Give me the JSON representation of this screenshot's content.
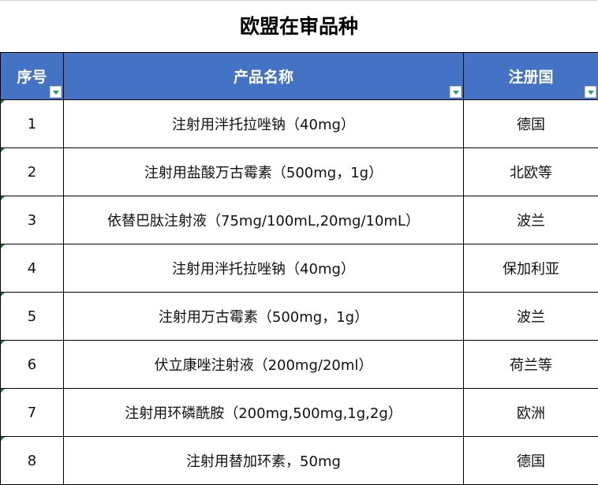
{
  "title": "欧盟在审品种",
  "columns": [
    "序号",
    "产品名称",
    "注册国"
  ],
  "filter_icon_color": "#1aa260",
  "header_color": "#4472c4",
  "rows": [
    {
      "no": "1",
      "name": "注射用泮托拉唑钠（40mg）",
      "country": "德国"
    },
    {
      "no": "2",
      "name": "注射用盐酸万古霉素（500mg，1g）",
      "country": "北欧等"
    },
    {
      "no": "3",
      "name": "依替巴肽注射液（75mg/100mL,20mg/10mL）",
      "country": "波兰"
    },
    {
      "no": "4",
      "name": "注射用泮托拉唑钠（40mg）",
      "country": "保加利亚"
    },
    {
      "no": "5",
      "name": "注射用万古霉素（500mg，1g）",
      "country": "波兰"
    },
    {
      "no": "6",
      "name": "伏立康唑注射液（200mg/20ml）",
      "country": "荷兰等"
    },
    {
      "no": "7",
      "name": "注射用环磷酰胺（200mg,500mg,1g,2g）",
      "country": "欧洲"
    },
    {
      "no": "8",
      "name": "注射用替加环素，50mg",
      "country": "德国"
    }
  ]
}
